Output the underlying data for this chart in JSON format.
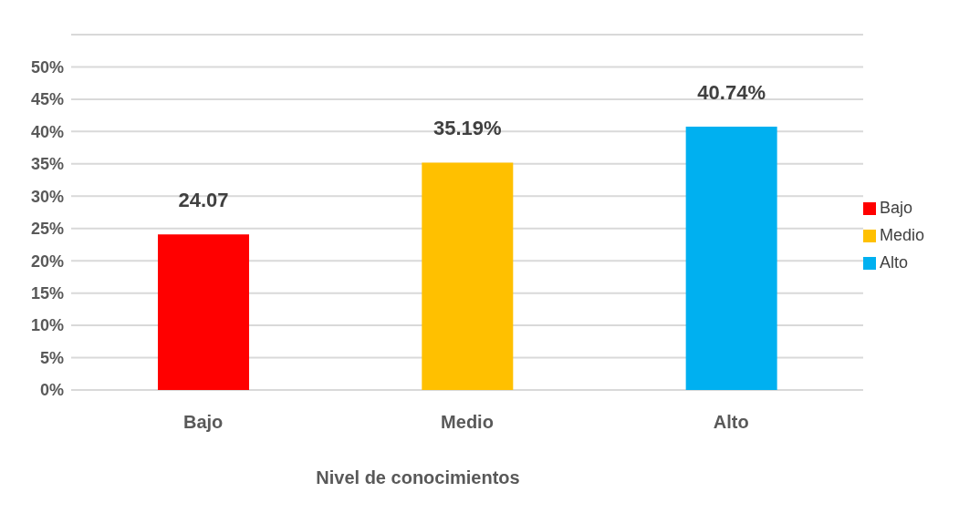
{
  "chart_data": {
    "type": "bar",
    "xlabel": "Nivel de conocimientos",
    "categories": [
      "Bajo",
      "Medio",
      "Alto"
    ],
    "series": [
      {
        "name": "Bajo",
        "color": "#ff0000",
        "values": [
          24.07,
          null,
          null
        ],
        "value_labels": [
          "24.07",
          null,
          null
        ]
      },
      {
        "name": "Medio",
        "color": "#ffc000",
        "values": [
          null,
          35.19,
          null
        ],
        "value_labels": [
          null,
          "35.19%",
          null
        ]
      },
      {
        "name": "Alto",
        "color": "#00b0f0",
        "values": [
          null,
          null,
          40.74
        ],
        "value_labels": [
          null,
          null,
          "40.74%"
        ]
      }
    ],
    "ylim": [
      0,
      55
    ],
    "yticks": [
      {
        "value": 0,
        "label": "0%"
      },
      {
        "value": 5,
        "label": "5%"
      },
      {
        "value": 10,
        "label": "10%"
      },
      {
        "value": 15,
        "label": "15%"
      },
      {
        "value": 20,
        "label": "20%"
      },
      {
        "value": 25,
        "label": "25%"
      },
      {
        "value": 30,
        "label": "30%"
      },
      {
        "value": 35,
        "label": "35%"
      },
      {
        "value": 40,
        "label": "40%"
      },
      {
        "value": 45,
        "label": "45%"
      },
      {
        "value": 50,
        "label": "50%"
      }
    ],
    "grid": "y",
    "legend": "right"
  }
}
